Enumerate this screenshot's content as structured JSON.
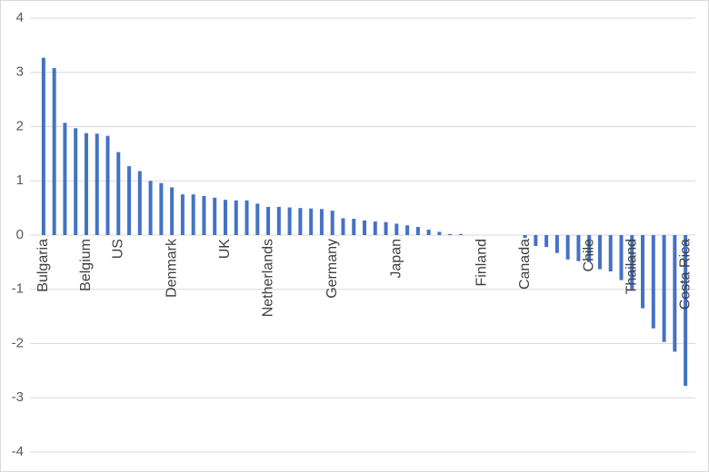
{
  "chart_data": {
    "type": "bar",
    "categories": [
      "Bulgaria",
      null,
      null,
      null,
      "Belgium",
      null,
      null,
      "US",
      null,
      null,
      null,
      null,
      "Denmark",
      null,
      null,
      null,
      null,
      "UK",
      null,
      null,
      null,
      "Netherlands",
      null,
      null,
      null,
      null,
      null,
      "Germany",
      null,
      null,
      null,
      null,
      null,
      "Japan",
      null,
      null,
      null,
      null,
      null,
      null,
      null,
      "Finland",
      null,
      null,
      null,
      "Canada",
      null,
      null,
      null,
      null,
      null,
      "Chile",
      null,
      null,
      null,
      "Thailand",
      null,
      null,
      null,
      null,
      "Costa Rica"
    ],
    "values": [
      3.27,
      3.08,
      2.07,
      1.97,
      1.88,
      1.87,
      1.83,
      1.53,
      1.27,
      1.18,
      1.0,
      0.96,
      0.88,
      0.75,
      0.75,
      0.72,
      0.69,
      0.65,
      0.64,
      0.64,
      0.58,
      0.52,
      0.52,
      0.51,
      0.5,
      0.49,
      0.48,
      0.45,
      0.31,
      0.3,
      0.27,
      0.25,
      0.24,
      0.21,
      0.18,
      0.15,
      0.1,
      0.06,
      0.02,
      0.02,
      0,
      0,
      0,
      0,
      0,
      -0.05,
      -0.2,
      -0.22,
      -0.33,
      -0.45,
      -0.48,
      -0.5,
      -0.63,
      -0.67,
      -0.83,
      -1.0,
      -1.35,
      -1.72,
      -1.97,
      -2.15,
      -2.78
    ],
    "color": "#4472c4",
    "ylim": [
      -4,
      4
    ],
    "yticks": [
      -4,
      -3,
      -2,
      -1,
      0,
      1,
      2,
      3,
      4
    ],
    "grid": true
  }
}
